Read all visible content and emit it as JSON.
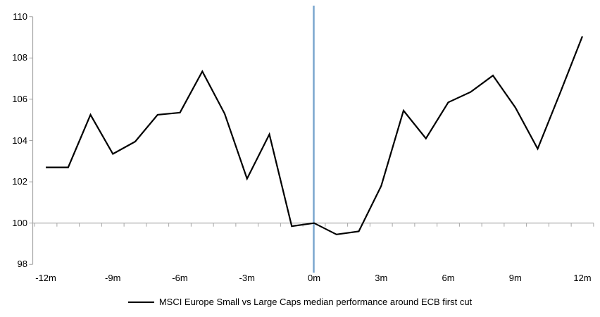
{
  "chart_data": {
    "type": "line",
    "title": "",
    "legend_position": "bottom-center",
    "x_months": [
      -12,
      -11,
      -10,
      -9,
      -8,
      -7,
      -6,
      -5,
      -4,
      -3,
      -2,
      -1,
      0,
      1,
      2,
      3,
      4,
      5,
      6,
      7,
      8,
      9,
      10,
      11,
      12
    ],
    "series": [
      {
        "name": "MSCI Europe Small vs Large Caps median performance around ECB first cut",
        "color": "#000000",
        "values": [
          102.7,
          102.7,
          105.25,
          103.35,
          103.95,
          105.25,
          105.35,
          107.35,
          105.3,
          102.15,
          104.3,
          99.85,
          100.0,
          99.45,
          99.6,
          101.8,
          105.45,
          104.1,
          105.85,
          106.35,
          107.15,
          105.6,
          103.6,
          106.3,
          109.05
        ]
      }
    ],
    "y_ticks": [
      98,
      100,
      102,
      104,
      106,
      108,
      110
    ],
    "ylim": [
      98,
      110
    ],
    "xlim_months": [
      -12.5,
      12.5
    ],
    "x_tick_labels": [
      "-12m",
      "-9m",
      "-6m",
      "-3m",
      "0m",
      "3m",
      "6m",
      "9m",
      "12m"
    ],
    "x_tick_label_months": [
      -12,
      -9,
      -6,
      -3,
      0,
      3,
      6,
      9,
      12
    ],
    "minor_x_ticks": "every 1 month at half-month boundaries along the 100 baseline",
    "reference_lines": [
      {
        "orientation": "vertical",
        "x_month": 0,
        "color": "#7aa6ce"
      },
      {
        "orientation": "horizontal",
        "y_value": 100,
        "color": "#a6a6a6"
      }
    ],
    "grid": "off",
    "axis_color": "#a6a6a6",
    "text_color": "#000000",
    "background_color": "#ffffff"
  }
}
